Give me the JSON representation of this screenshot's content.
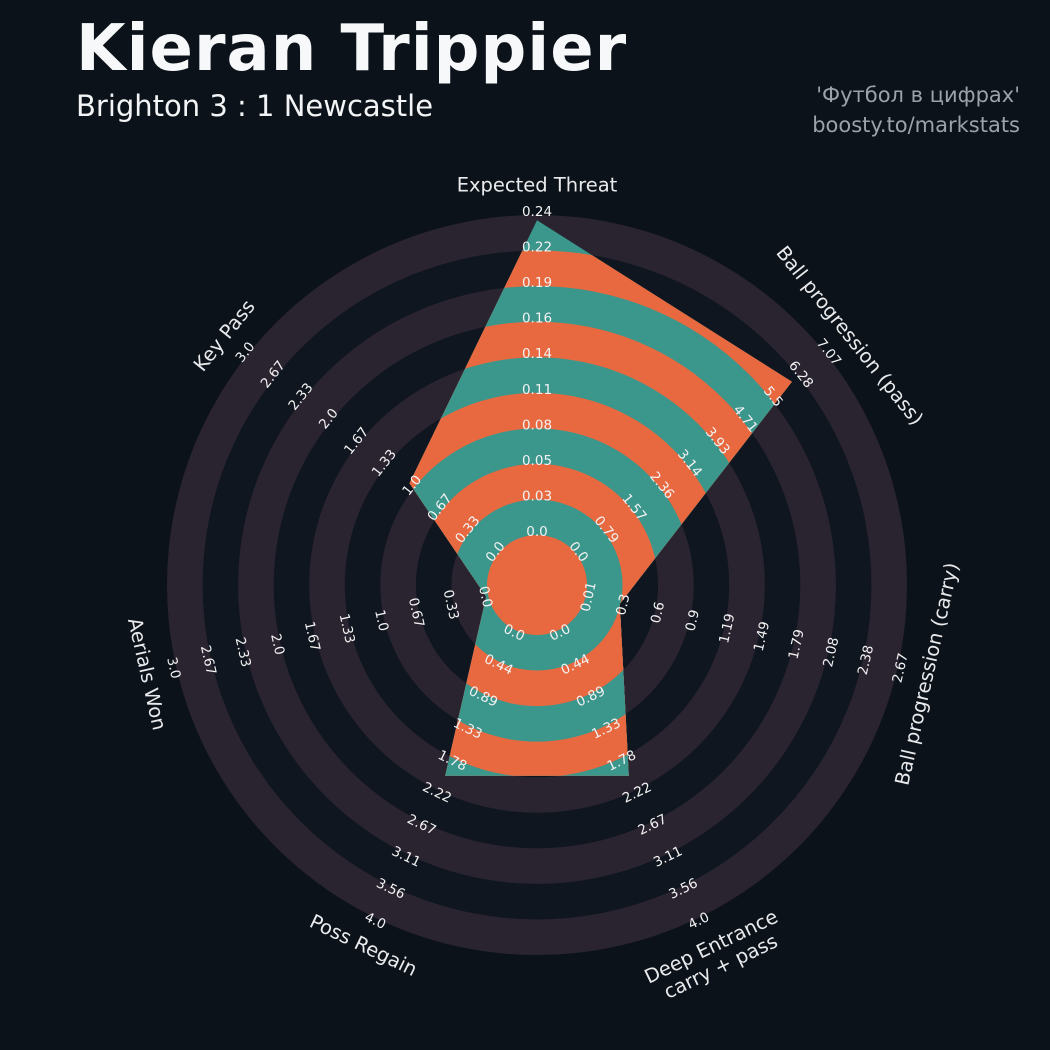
{
  "header": {
    "title": "Kieran Trippier",
    "subtitle": "Brighton 3 : 1 Newcastle",
    "watermark_line1": "'Футбол в цифрах'",
    "watermark_line2": "boosty.to/markstats"
  },
  "chart_data": {
    "type": "radar",
    "style": "pizza-concentric-rings",
    "center": [
      537,
      585
    ],
    "inner_radius": 50,
    "outer_radius": 370,
    "rings": 9,
    "grid": "concentric-bands",
    "legend": "none",
    "colors": {
      "background": "#0c121a",
      "band_dark": "#10161f",
      "band_light": "#2a2430",
      "slice_teal": "#3b968c",
      "slice_orange": "#e8693f",
      "tick_text": "#f2f2f3",
      "axis_label_text": "#e9eaec"
    },
    "axes": [
      {
        "label": "Expected Threat",
        "angle_deg": 90,
        "value": 0.236,
        "ticks": [
          "0.0",
          "0.03",
          "0.05",
          "0.08",
          "0.11",
          "0.14",
          "0.16",
          "0.19",
          "0.22",
          "0.24"
        ]
      },
      {
        "label": "Ball progression (pass)",
        "angle_deg": 38.57,
        "value": 6.1,
        "ticks": [
          "0.0",
          "0.79",
          "1.57",
          "2.36",
          "3.14",
          "3.93",
          "4.71",
          "5.5",
          "6.28",
          "7.07"
        ]
      },
      {
        "label": "Ball progression (carry)",
        "angle_deg": -12.86,
        "value": 0.3,
        "ticks": [
          "0.01",
          "0.3",
          "0.6",
          "0.9",
          "1.19",
          "1.49",
          "1.79",
          "2.08",
          "2.38",
          "2.67"
        ]
      },
      {
        "label": "Deep Entrance",
        "label2": "carry + pass",
        "angle_deg": -64.29,
        "value": 2.02,
        "ticks": [
          "0.0",
          "0.44",
          "0.89",
          "1.33",
          "1.78",
          "2.22",
          "2.67",
          "3.11",
          "3.56",
          "4.0"
        ]
      },
      {
        "label": "Poss Regain",
        "angle_deg": -115.71,
        "value": 2.02,
        "ticks": [
          "0.0",
          "0.44",
          "0.89",
          "1.33",
          "1.78",
          "2.22",
          "2.67",
          "3.11",
          "3.56",
          "4.0"
        ]
      },
      {
        "label": "Aerials Won",
        "angle_deg": -167.14,
        "value": 0.02,
        "ticks": [
          "0.0",
          "0.33",
          "0.67",
          "1.0",
          "1.33",
          "1.67",
          "2.0",
          "2.33",
          "2.67",
          "3.0"
        ]
      },
      {
        "label": "Key Pass",
        "angle_deg": 141.43,
        "value": 1.06,
        "ticks": [
          "0.0",
          "0.33",
          "0.67",
          "1.0",
          "1.33",
          "1.67",
          "2.0",
          "2.33",
          "2.67",
          "3.0"
        ]
      }
    ]
  }
}
